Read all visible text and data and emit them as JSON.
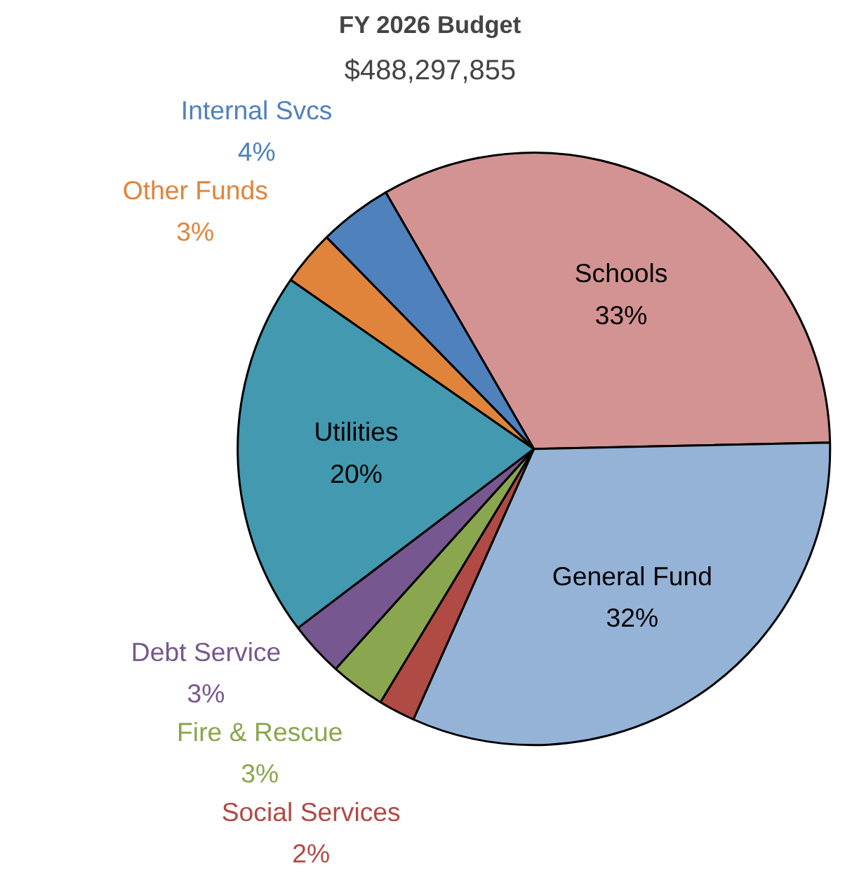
{
  "chart_data": {
    "type": "pie",
    "title": "FY 2026 Budget",
    "subtitle": "$488,297,855",
    "categories": [
      "Schools",
      "General Fund",
      "Social Services",
      "Fire & Rescue",
      "Debt Service",
      "Utilities",
      "Other Funds",
      "Internal Svcs"
    ],
    "values": [
      33,
      32,
      2,
      3,
      3,
      20,
      3,
      4
    ],
    "colors": [
      "#d39392",
      "#95b3d7",
      "#b04a45",
      "#8aa64e",
      "#77578f",
      "#4299b0",
      "#e0843b",
      "#4f81bd"
    ],
    "value_labels": [
      "33%",
      "32%",
      "2%",
      "3%",
      "3%",
      "20%",
      "3%",
      "4%"
    ]
  }
}
